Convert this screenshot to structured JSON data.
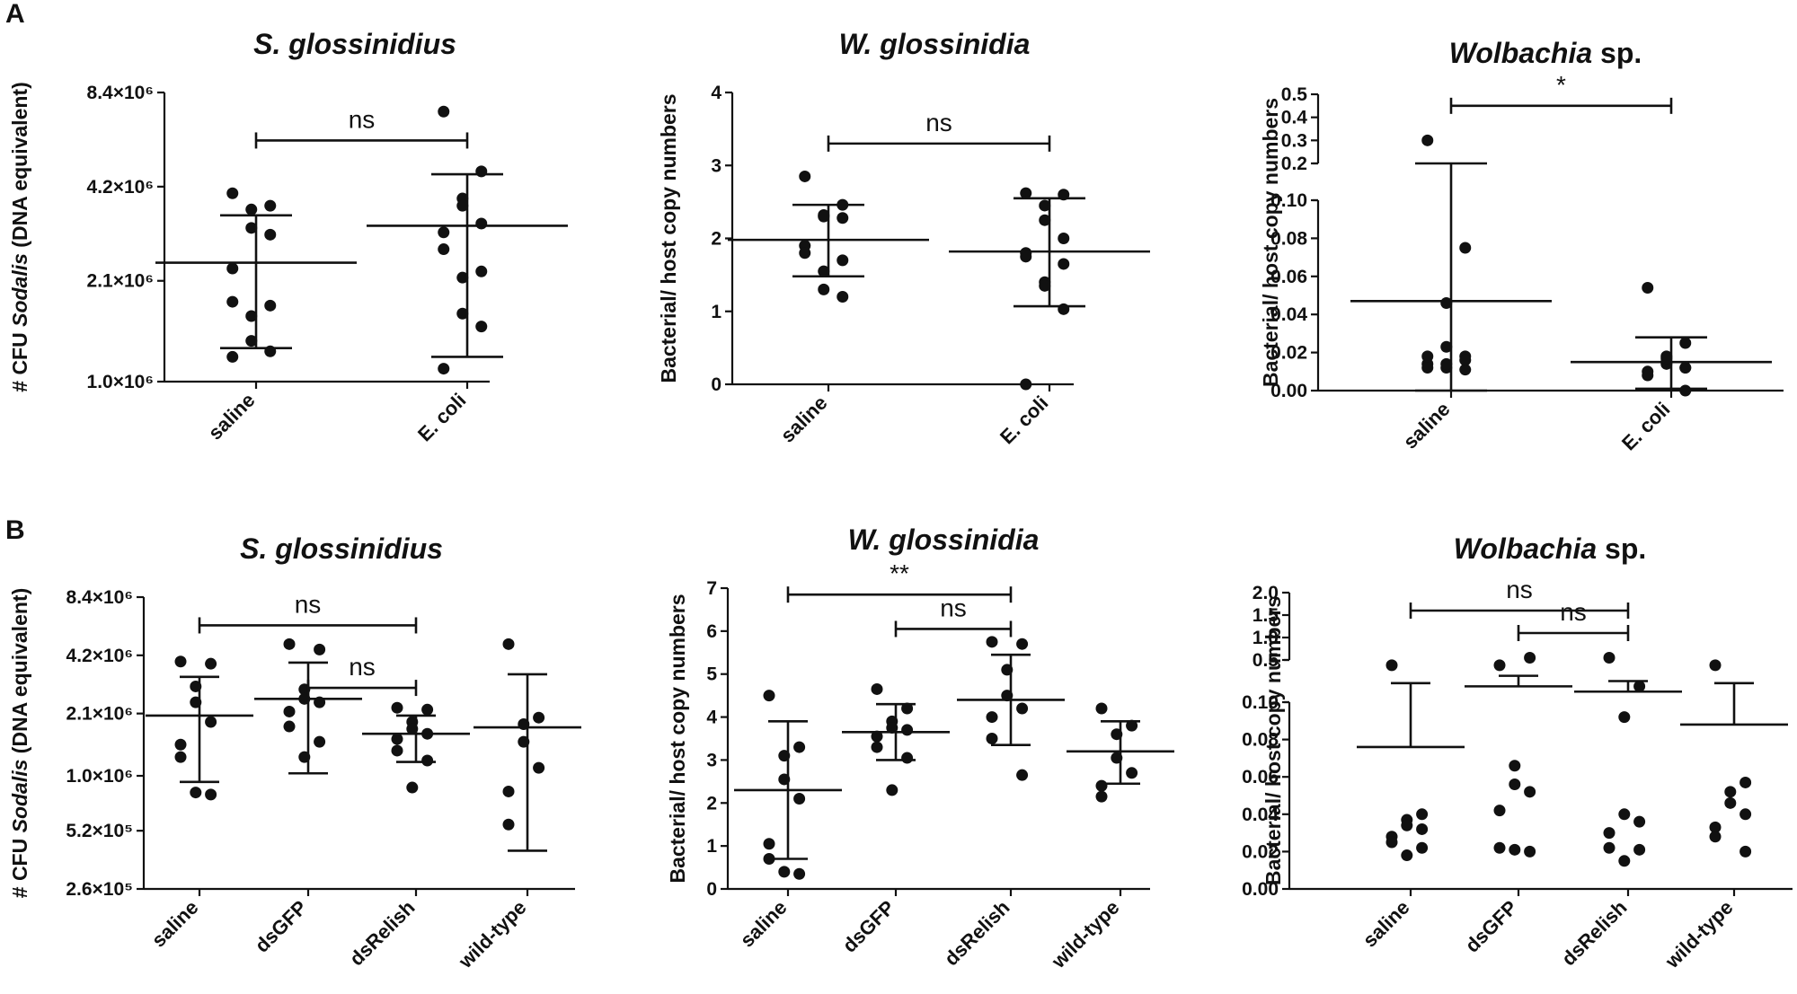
{
  "panel_labels": [
    "A",
    "B"
  ],
  "chart_data": [
    {
      "type": "scatter",
      "panel": "A",
      "title": "S. glossinidius",
      "title_italic": true,
      "ylabel_parts": [
        [
          "# CFU ",
          false
        ],
        [
          "Sodalis",
          true
        ],
        [
          " (DNA equivalent)",
          false
        ]
      ],
      "yscale": "log2",
      "yticks": [
        {
          "value": 1000000,
          "label": "1.0×10⁶"
        },
        {
          "value": 2100000,
          "label": "2.1×10⁶"
        },
        {
          "value": 4200000,
          "label": "4.2×10⁶"
        },
        {
          "value": 8400000,
          "label": "8.4×10⁶"
        }
      ],
      "ylim": [
        1000000,
        8400000
      ],
      "categories": [
        "saline",
        "E. coli"
      ],
      "series": [
        {
          "name": "saline",
          "mean": 2400000,
          "upper": 3400000,
          "lower": 1280000,
          "points": [
            4000000,
            3650000,
            3550000,
            3100000,
            2950000,
            2300000,
            1800000,
            1750000,
            1620000,
            1350000,
            1250000,
            1200000
          ]
        },
        {
          "name": "E. coli",
          "mean": 3150000,
          "upper": 4600000,
          "lower": 1200000,
          "points": [
            7300000,
            4700000,
            3850000,
            3650000,
            3200000,
            3000000,
            2650000,
            2250000,
            2150000,
            1650000,
            1500000,
            1100000
          ]
        }
      ],
      "comparisons": [
        {
          "from": 0,
          "to": 1,
          "label": "ns",
          "y": 5900000
        }
      ]
    },
    {
      "type": "scatter",
      "panel": "A",
      "title": "W. glossinidia",
      "title_italic": true,
      "ylabel_parts": [
        [
          "Bacterial/ host copy numbers",
          false
        ]
      ],
      "yscale": "linear",
      "yticks": [
        {
          "value": 0,
          "label": "0"
        },
        {
          "value": 1,
          "label": "1"
        },
        {
          "value": 2,
          "label": "2"
        },
        {
          "value": 3,
          "label": "3"
        },
        {
          "value": 4,
          "label": "4"
        }
      ],
      "ylim": [
        0,
        4
      ],
      "categories": [
        "saline",
        "E. coli"
      ],
      "series": [
        {
          "name": "saline",
          "mean": 1.98,
          "upper": 2.46,
          "lower": 1.48,
          "points": [
            2.85,
            2.46,
            2.32,
            2.3,
            2.28,
            1.9,
            1.8,
            1.7,
            1.55,
            1.3,
            1.2
          ]
        },
        {
          "name": "E. coli",
          "mean": 1.82,
          "upper": 2.55,
          "lower": 1.07,
          "points": [
            2.62,
            2.6,
            2.45,
            2.25,
            2.0,
            1.8,
            1.75,
            1.65,
            1.4,
            1.35,
            1.03,
            0.0
          ]
        }
      ],
      "comparisons": [
        {
          "from": 0,
          "to": 1,
          "label": "ns",
          "y": 3.3
        }
      ]
    },
    {
      "type": "scatter",
      "panel": "A",
      "title": "Wolbachia",
      "title_suffix": " sp.",
      "title_italic": true,
      "ylabel_parts": [
        [
          "Bacterial/ host copy numbers",
          false
        ]
      ],
      "yscale": "broken",
      "yticks": [
        {
          "value": 0,
          "label": "0.00"
        },
        {
          "value": 0.02,
          "label": "0.02"
        },
        {
          "value": 0.04,
          "label": "0.04"
        },
        {
          "value": 0.06,
          "label": "0.06"
        },
        {
          "value": 0.08,
          "label": "0.08"
        },
        {
          "value": 0.1,
          "label": "0.10"
        },
        {
          "value": 0.2,
          "label": "0.2"
        },
        {
          "value": 0.3,
          "label": "0.3"
        },
        {
          "value": 0.4,
          "label": "0.4"
        },
        {
          "value": 0.5,
          "label": "0.5"
        }
      ],
      "ylim": [
        0,
        0.5
      ],
      "categories": [
        "saline",
        "E. coli"
      ],
      "series": [
        {
          "name": "saline",
          "mean": 0.047,
          "upper": 0.2,
          "lower": 0.0,
          "points": [
            0.3,
            0.075,
            0.046,
            0.023,
            0.018,
            0.014,
            0.012,
            0.011,
            0.012,
            0.014,
            0.016,
            0.018
          ]
        },
        {
          "name": "E. coli",
          "mean": 0.015,
          "upper": 0.028,
          "lower": 0.001,
          "points": [
            0.054,
            0.025,
            0.018,
            0.015,
            0.012,
            0.01,
            0.008,
            0.012,
            0.014,
            0.017,
            0.0
          ]
        }
      ],
      "comparisons": [
        {
          "from": 0,
          "to": 1,
          "label": "*",
          "y": 0.45
        }
      ]
    },
    {
      "type": "scatter",
      "panel": "B",
      "title": "S. glossinidius",
      "title_italic": true,
      "ylabel_parts": [
        [
          "# CFU ",
          false
        ],
        [
          "Sodalis",
          true
        ],
        [
          " (DNA equivalent)",
          false
        ]
      ],
      "yscale": "log2",
      "yticks": [
        {
          "value": 260000,
          "label": "2.6×10⁵"
        },
        {
          "value": 520000,
          "label": "5.2×10⁵"
        },
        {
          "value": 1000000,
          "label": "1.0×10⁶"
        },
        {
          "value": 2100000,
          "label": "2.1×10⁶"
        },
        {
          "value": 4200000,
          "label": "4.2×10⁶"
        },
        {
          "value": 8400000,
          "label": "8.4×10⁶"
        }
      ],
      "ylim": [
        260000,
        8400000
      ],
      "categories": [
        "saline",
        "dsGFP",
        "dsRelish",
        "wild-type"
      ],
      "series": [
        {
          "name": "saline",
          "mean": 2050000,
          "upper": 3250000,
          "lower": 930000,
          "points": [
            3900000,
            3800000,
            2900000,
            2400000,
            1900000,
            1450000,
            1250000,
            800000,
            820000
          ]
        },
        {
          "name": "dsGFP",
          "mean": 2500000,
          "upper": 3850000,
          "lower": 1030000,
          "points": [
            4800000,
            4500000,
            2800000,
            2500000,
            2400000,
            2150000,
            1800000,
            1500000,
            1250000
          ]
        },
        {
          "name": "dsRelish",
          "mean": 1650000,
          "upper": 2050000,
          "lower": 1180000,
          "points": [
            2250000,
            2200000,
            1900000,
            1750000,
            1650000,
            1550000,
            1350000,
            1200000,
            870000
          ]
        },
        {
          "name": "wild-type",
          "mean": 1780000,
          "upper": 3350000,
          "lower": 410000,
          "points": [
            4800000,
            2000000,
            1850000,
            1500000,
            1100000,
            830000,
            560000
          ]
        }
      ],
      "comparisons": [
        {
          "from": 0,
          "to": 2,
          "label": "ns",
          "y": 6000000
        },
        {
          "from": 1,
          "to": 2,
          "label": "ns",
          "y": 2850000
        }
      ]
    },
    {
      "type": "scatter",
      "panel": "B",
      "title": "W. glossinidia",
      "title_italic": true,
      "ylabel_parts": [
        [
          "Bacterial/ host copy numbers",
          false
        ]
      ],
      "yscale": "linear",
      "yticks": [
        {
          "value": 0,
          "label": "0"
        },
        {
          "value": 1,
          "label": "1"
        },
        {
          "value": 2,
          "label": "2"
        },
        {
          "value": 3,
          "label": "3"
        },
        {
          "value": 4,
          "label": "4"
        },
        {
          "value": 5,
          "label": "5"
        },
        {
          "value": 6,
          "label": "6"
        },
        {
          "value": 7,
          "label": "7"
        }
      ],
      "ylim": [
        0,
        7
      ],
      "categories": [
        "saline",
        "dsGFP",
        "dsRelish",
        "wild-type"
      ],
      "series": [
        {
          "name": "saline",
          "mean": 2.3,
          "upper": 3.9,
          "lower": 0.7,
          "points": [
            4.5,
            3.3,
            3.1,
            2.55,
            2.1,
            1.05,
            0.7,
            0.35,
            0.4
          ]
        },
        {
          "name": "dsGFP",
          "mean": 3.65,
          "upper": 4.3,
          "lower": 3.0,
          "points": [
            4.65,
            4.2,
            3.9,
            3.75,
            3.7,
            3.55,
            3.3,
            3.05,
            2.3
          ]
        },
        {
          "name": "dsRelish",
          "mean": 4.4,
          "upper": 5.45,
          "lower": 3.35,
          "points": [
            5.75,
            5.7,
            5.1,
            4.5,
            4.2,
            4.0,
            3.5,
            2.65
          ]
        },
        {
          "name": "wild-type",
          "mean": 3.2,
          "upper": 3.9,
          "lower": 2.45,
          "points": [
            4.2,
            3.8,
            3.6,
            3.05,
            2.7,
            2.4,
            2.15
          ]
        }
      ],
      "comparisons": [
        {
          "from": 0,
          "to": 2,
          "label": "**",
          "y": 6.85
        },
        {
          "from": 1,
          "to": 2,
          "label": "ns",
          "y": 6.05
        }
      ]
    },
    {
      "type": "scatter",
      "panel": "B",
      "title": "Wolbachia",
      "title_suffix": " sp.",
      "title_italic": true,
      "ylabel_parts": [
        [
          "Bacterial/ host copy numbers",
          false
        ]
      ],
      "yscale": "broken",
      "yticks": [
        {
          "value": 0,
          "label": "0.00"
        },
        {
          "value": 0.02,
          "label": "0.02"
        },
        {
          "value": 0.04,
          "label": "0.04"
        },
        {
          "value": 0.06,
          "label": "0.06"
        },
        {
          "value": 0.08,
          "label": "0.08"
        },
        {
          "value": 0.1,
          "label": "0.10"
        },
        {
          "value": 0.5,
          "label": "0.5"
        },
        {
          "value": 1.0,
          "label": "1.0"
        },
        {
          "value": 1.5,
          "label": "1.5"
        },
        {
          "value": 2.0,
          "label": "2.0"
        }
      ],
      "ylim": [
        0,
        2.0
      ],
      "categories": [
        "saline",
        "dsGFP",
        "dsRelish",
        "wild-type"
      ],
      "series": [
        {
          "name": "saline",
          "mean": 0.076,
          "upper": 0.28,
          "lower": null,
          "points": [
            0.45,
            0.04,
            0.037,
            0.034,
            0.032,
            0.028,
            0.025,
            0.022,
            0.018
          ]
        },
        {
          "name": "dsGFP",
          "mean": 0.25,
          "upper": 0.35,
          "lower": null,
          "points": [
            0.45,
            0.55,
            0.066,
            0.056,
            0.052,
            0.042,
            0.022,
            0.02,
            0.021
          ]
        },
        {
          "name": "dsRelish",
          "mean": 0.2,
          "upper": 0.3,
          "lower": null,
          "points": [
            0.55,
            0.25,
            0.092,
            0.04,
            0.036,
            0.03,
            0.022,
            0.021,
            0.015
          ]
        },
        {
          "name": "wild-type",
          "mean": 0.088,
          "upper": 0.28,
          "lower": null,
          "points": [
            0.45,
            0.057,
            0.052,
            0.046,
            0.04,
            0.033,
            0.028,
            0.02
          ]
        }
      ],
      "comparisons": [
        {
          "from": 0,
          "to": 2,
          "label": "ns",
          "y": 1.6
        },
        {
          "from": 1,
          "to": 2,
          "label": "ns",
          "y": 1.1
        }
      ]
    }
  ]
}
